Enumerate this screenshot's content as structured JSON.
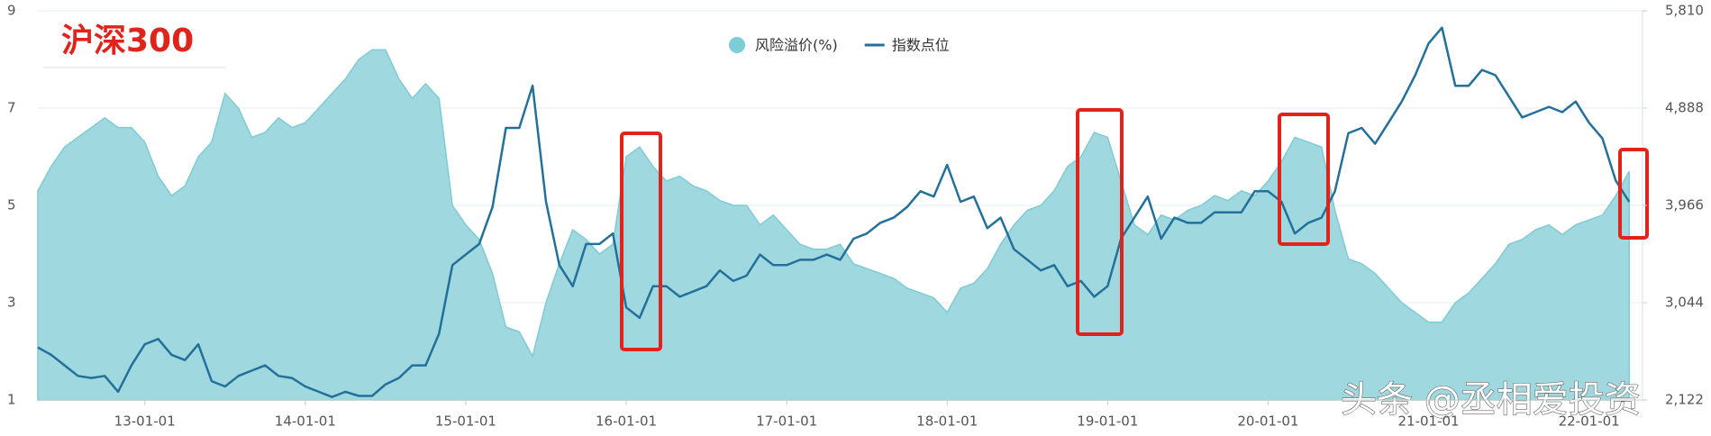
{
  "chart_data": {
    "type": "area-line",
    "title": "沪深300",
    "watermark": "头条 @丞相爱投资",
    "x": [
      "12-05-01",
      "12-06-01",
      "12-07-01",
      "12-08-01",
      "12-09-01",
      "12-10-01",
      "12-11-01",
      "12-12-01",
      "13-01-01",
      "13-02-01",
      "13-03-01",
      "13-04-01",
      "13-05-01",
      "13-06-01",
      "13-07-01",
      "13-08-01",
      "13-09-01",
      "13-10-01",
      "13-11-01",
      "13-12-01",
      "14-01-01",
      "14-02-01",
      "14-03-01",
      "14-04-01",
      "14-05-01",
      "14-06-01",
      "14-07-01",
      "14-08-01",
      "14-09-01",
      "14-10-01",
      "14-11-01",
      "14-12-01",
      "15-01-01",
      "15-02-01",
      "15-03-01",
      "15-04-01",
      "15-05-01",
      "15-06-01",
      "15-07-01",
      "15-08-01",
      "15-09-01",
      "15-10-01",
      "15-11-01",
      "15-12-01",
      "16-01-01",
      "16-02-01",
      "16-03-01",
      "16-04-01",
      "16-05-01",
      "16-06-01",
      "16-07-01",
      "16-08-01",
      "16-09-01",
      "16-10-01",
      "16-11-01",
      "16-12-01",
      "17-01-01",
      "17-02-01",
      "17-03-01",
      "17-04-01",
      "17-05-01",
      "17-06-01",
      "17-07-01",
      "17-08-01",
      "17-09-01",
      "17-10-01",
      "17-11-01",
      "17-12-01",
      "18-01-01",
      "18-02-01",
      "18-03-01",
      "18-04-01",
      "18-05-01",
      "18-06-01",
      "18-07-01",
      "18-08-01",
      "18-09-01",
      "18-10-01",
      "18-11-01",
      "18-12-01",
      "19-01-01",
      "19-02-01",
      "19-03-01",
      "19-04-01",
      "19-05-01",
      "19-06-01",
      "19-07-01",
      "19-08-01",
      "19-09-01",
      "19-10-01",
      "19-11-01",
      "19-12-01",
      "20-01-01",
      "20-02-01",
      "20-03-01",
      "20-04-01",
      "20-05-01",
      "20-06-01",
      "20-07-01",
      "20-08-01",
      "20-09-01",
      "20-10-01",
      "20-11-01",
      "20-12-01",
      "21-01-01",
      "21-02-01",
      "21-03-01",
      "21-04-01",
      "21-05-01",
      "21-06-01",
      "21-07-01",
      "21-08-01",
      "21-09-01",
      "21-10-01",
      "21-11-01",
      "21-12-01",
      "22-01-01",
      "22-02-01",
      "22-03-01",
      "22-04-01"
    ],
    "xlim": [
      "12-05-01",
      "22-05-01"
    ],
    "xticks": [
      "13-01-01",
      "14-01-01",
      "15-01-01",
      "16-01-01",
      "17-01-01",
      "18-01-01",
      "19-01-01",
      "20-01-01",
      "21-01-01",
      "22-01-01"
    ],
    "ylim": [
      1,
      9
    ],
    "yticks": [
      1,
      3,
      5,
      7,
      9
    ],
    "y2lim": [
      2122,
      5810
    ],
    "y2ticks": [
      {
        "value": 2122,
        "label": "2,122"
      },
      {
        "value": 3044,
        "label": "3,044"
      },
      {
        "value": 3966,
        "label": "3,966"
      },
      {
        "value": 4888,
        "label": "4,888"
      },
      {
        "value": 5810,
        "label": "5,810"
      }
    ],
    "grid": true,
    "series": [
      {
        "name": "风险溢价(%)",
        "color": "#9fd8df",
        "kind": "area",
        "values": [
          5.3,
          5.8,
          6.2,
          6.4,
          6.6,
          6.8,
          6.6,
          6.6,
          6.3,
          5.6,
          5.2,
          5.4,
          6.0,
          6.3,
          7.3,
          7.0,
          6.4,
          6.5,
          6.8,
          6.6,
          6.7,
          7.0,
          7.3,
          7.6,
          8.0,
          8.2,
          8.2,
          7.6,
          7.2,
          7.5,
          7.2,
          5.0,
          4.6,
          4.3,
          3.6,
          2.5,
          2.4,
          1.9,
          3.0,
          3.8,
          4.5,
          4.3,
          4.0,
          4.2,
          6.0,
          6.2,
          5.8,
          5.5,
          5.6,
          5.4,
          5.3,
          5.1,
          5.0,
          5.0,
          4.6,
          4.8,
          4.5,
          4.2,
          4.1,
          4.1,
          4.2,
          3.8,
          3.7,
          3.6,
          3.5,
          3.3,
          3.2,
          3.1,
          2.8,
          3.3,
          3.4,
          3.7,
          4.2,
          4.6,
          4.9,
          5.0,
          5.3,
          5.8,
          6.0,
          6.5,
          6.4,
          5.5,
          4.6,
          4.4,
          4.8,
          4.7,
          4.9,
          5.0,
          5.2,
          5.1,
          5.3,
          5.2,
          5.5,
          5.9,
          6.4,
          6.3,
          6.2,
          4.9,
          3.9,
          3.8,
          3.6,
          3.3,
          3.0,
          2.8,
          2.6,
          2.6,
          3.0,
          3.2,
          3.5,
          3.8,
          4.2,
          4.3,
          4.5,
          4.6,
          4.4,
          4.6,
          4.7,
          4.8,
          5.2,
          5.7
        ]
      },
      {
        "name": "指数点位",
        "color": "#23709a",
        "kind": "line",
        "axis": "y2",
        "values": [
          2620,
          2550,
          2450,
          2350,
          2330,
          2350,
          2200,
          2450,
          2650,
          2700,
          2550,
          2500,
          2650,
          2300,
          2250,
          2350,
          2400,
          2450,
          2350,
          2330,
          2250,
          2200,
          2150,
          2200,
          2160,
          2160,
          2270,
          2330,
          2450,
          2450,
          2750,
          3400,
          3500,
          3600,
          3950,
          4700,
          4700,
          5100,
          4000,
          3400,
          3200,
          3600,
          3600,
          3700,
          3000,
          2900,
          3200,
          3200,
          3100,
          3150,
          3200,
          3350,
          3250,
          3300,
          3500,
          3400,
          3400,
          3450,
          3450,
          3500,
          3450,
          3650,
          3700,
          3800,
          3850,
          3950,
          4100,
          4050,
          4350,
          4000,
          4050,
          3750,
          3850,
          3550,
          3450,
          3350,
          3400,
          3200,
          3250,
          3100,
          3200,
          3650,
          3850,
          4050,
          3650,
          3850,
          3800,
          3800,
          3900,
          3900,
          3900,
          4100,
          4100,
          4000,
          3700,
          3800,
          3850,
          4100,
          4650,
          4700,
          4550,
          4750,
          4950,
          5200,
          5500,
          5650,
          5100,
          5100,
          5250,
          5200,
          5000,
          4800,
          4850,
          4900,
          4850,
          4950,
          4750,
          4600,
          4200,
          4000
        ]
      }
    ]
  }
}
